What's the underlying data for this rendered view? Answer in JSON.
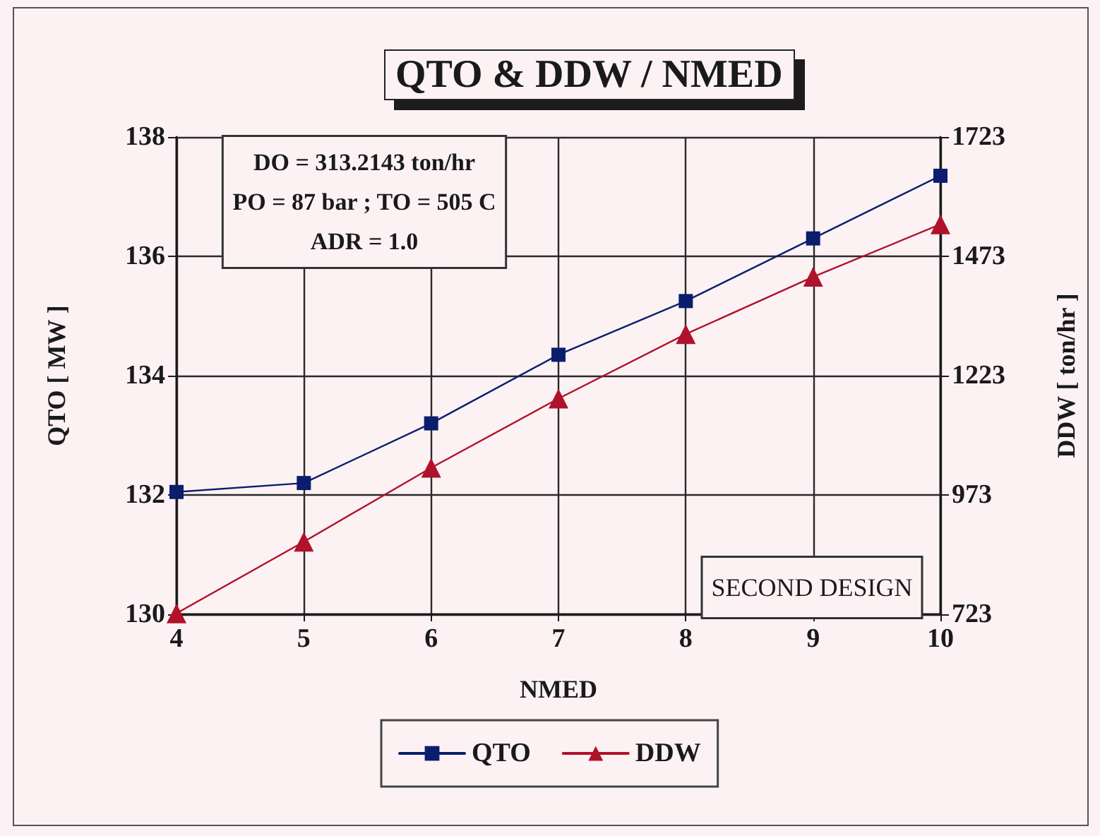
{
  "chart_data": {
    "type": "line",
    "title": "QTO & DDW / NMED",
    "xlabel": "NMED",
    "ylabel": "QTO [ MW ]",
    "y2label": "DDW [ ton/hr ]",
    "x": [
      4,
      5,
      6,
      7,
      8,
      9,
      10
    ],
    "xlim": [
      4,
      10
    ],
    "xticks": [
      4,
      5,
      6,
      7,
      8,
      9,
      10
    ],
    "ylim": [
      130,
      138
    ],
    "yticks": [
      130,
      132,
      134,
      136,
      138
    ],
    "y2lim": [
      723,
      1723
    ],
    "y2ticks": [
      723,
      973,
      1223,
      1473,
      1723
    ],
    "series": [
      {
        "name": "QTO",
        "color": "#0c1d6e",
        "marker": "square",
        "values": [
          132.05,
          132.2,
          133.2,
          134.35,
          135.25,
          136.3,
          137.35
        ]
      },
      {
        "name": "DDW",
        "color": "#b0122a",
        "marker": "triangle",
        "axis": "y2",
        "values": [
          725,
          875,
          1030,
          1175,
          1310,
          1430,
          1540
        ]
      }
    ],
    "annotations": [
      "DO = 313.2143 ton/hr\nPO = 87 bar ; TO = 505 C\nADR = 1.0",
      "SECOND DESIGN"
    ],
    "grid": true,
    "legend": "bottom",
    "line_style": "solid"
  }
}
